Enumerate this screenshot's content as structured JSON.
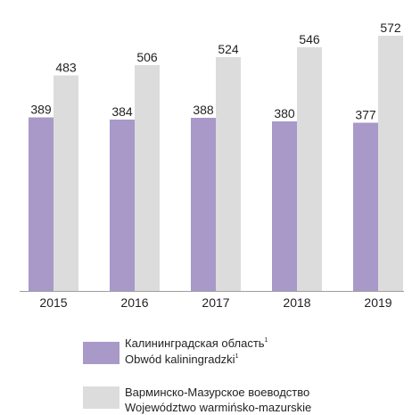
{
  "chart_data": {
    "type": "bar",
    "categories": [
      "2015",
      "2016",
      "2017",
      "2018",
      "2019"
    ],
    "series": [
      {
        "name": "Калининградская область / Obwód kaliningradzki",
        "color": "#a899c8",
        "values": [
          389,
          384,
          388,
          380,
          377
        ]
      },
      {
        "name": "Варминско-Мазурское воеводство / Województwo warmińsko-mazurskie",
        "color": "#dcdcdc",
        "values": [
          483,
          506,
          524,
          546,
          572
        ]
      }
    ],
    "ylim": [
      0,
      600
    ],
    "grid": false,
    "legend_position": "bottom",
    "legend": [
      {
        "line1": "Калининградская область",
        "line2": "Obwód kaliningradzki",
        "footnote": "1",
        "color": "#a899c8"
      },
      {
        "line1": "Варминско-Мазурское воеводство",
        "line2": "Województwo warmińsko-mazurskie",
        "footnote": "",
        "color": "#dcdcdc"
      }
    ]
  }
}
